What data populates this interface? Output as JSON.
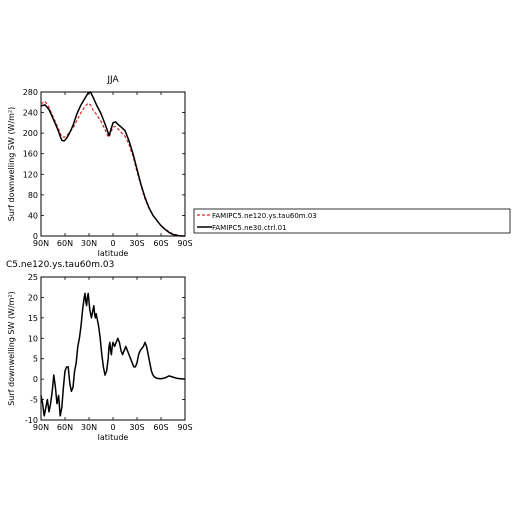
{
  "colors": {
    "series_0": "#d62728",
    "series_1": "#000000",
    "background": "#ffffff",
    "axes": "#000000"
  },
  "chart_data": [
    {
      "type": "line",
      "title": "JJA",
      "xlabel": "latitude",
      "ylabel": "Surf downwelling SW (W/m²)",
      "xlim": [
        90,
        -90
      ],
      "ylim": [
        0,
        280
      ],
      "x_ticks": [
        90,
        60,
        30,
        0,
        -30,
        -60,
        -90
      ],
      "x_tick_labels": [
        "90N",
        "60N",
        "30N",
        "0",
        "30S",
        "60S",
        "90S"
      ],
      "y_ticks": [
        0,
        40,
        80,
        120,
        160,
        200,
        240,
        280
      ],
      "y_tick_labels": [
        "0",
        "40",
        "80",
        "120",
        "160",
        "200",
        "240",
        "280"
      ],
      "legend": {
        "placement": "right"
      },
      "series": [
        {
          "name": "FAMIPC5.ne120.ys.tau60m.03",
          "style": "dashed",
          "x": [
            90,
            85,
            80,
            76,
            72,
            68,
            66,
            64,
            61,
            58,
            55,
            50,
            45,
            40,
            35,
            31,
            28,
            25,
            20,
            15,
            10,
            7,
            5,
            3,
            0,
            -3,
            -7,
            -10,
            -15,
            -20,
            -25,
            -30,
            -35,
            -40,
            -45,
            -50,
            -55,
            -60,
            -65,
            -70,
            -75,
            -80,
            -85,
            -90
          ],
          "y": [
            257,
            262,
            250,
            236,
            222,
            208,
            200,
            193,
            192,
            195,
            200,
            210,
            225,
            240,
            252,
            258,
            255,
            245,
            235,
            223,
            207,
            196,
            192,
            200,
            212,
            213,
            207,
            202,
            194,
            178,
            155,
            125,
            98,
            72,
            53,
            40,
            30,
            20,
            14,
            8,
            4,
            2,
            0,
            0
          ]
        },
        {
          "name": "FAMIPC5.ne30.ctrl.01",
          "style": "solid",
          "x": [
            90,
            85,
            80,
            76,
            72,
            68,
            66,
            64,
            61,
            58,
            55,
            50,
            45,
            40,
            35,
            31,
            28,
            25,
            20,
            15,
            10,
            7,
            5,
            3,
            0,
            -3,
            -7,
            -10,
            -15,
            -20,
            -25,
            -30,
            -35,
            -40,
            -45,
            -50,
            -55,
            -60,
            -65,
            -70,
            -75,
            -80,
            -85,
            -90
          ],
          "y": [
            253,
            255,
            246,
            232,
            218,
            203,
            194,
            186,
            185,
            190,
            198,
            215,
            238,
            255,
            268,
            278,
            280,
            270,
            253,
            238,
            218,
            205,
            195,
            205,
            220,
            222,
            216,
            212,
            205,
            185,
            160,
            130,
            100,
            75,
            55,
            40,
            30,
            20,
            13,
            7,
            3,
            1,
            0,
            0
          ]
        }
      ]
    },
    {
      "type": "line",
      "title": "C5.ne120.ys.tau60m.03",
      "xlabel": "latitude",
      "ylabel": "Surf downwelling SW (W/m²)",
      "xlim": [
        90,
        -90
      ],
      "ylim": [
        -10,
        25
      ],
      "x_ticks": [
        90,
        60,
        30,
        0,
        -30,
        -60,
        -90
      ],
      "x_tick_labels": [
        "90N",
        "60N",
        "30N",
        "0",
        "30S",
        "60S",
        "90S"
      ],
      "y_ticks": [
        -10,
        -5,
        0,
        5,
        10,
        15,
        20,
        25
      ],
      "y_tick_labels": [
        "-10",
        "-5",
        "0",
        "5",
        "10",
        "15",
        "20",
        "25"
      ],
      "series": [
        {
          "style": "solid",
          "x": [
            90,
            88,
            86,
            84,
            82,
            80,
            78,
            76,
            74,
            72,
            70,
            68,
            66,
            64,
            62,
            60,
            58,
            56,
            54,
            52,
            50,
            48,
            46,
            44,
            42,
            40,
            38,
            36,
            35,
            34,
            33,
            32,
            31,
            30,
            29,
            28,
            27,
            26,
            25,
            24,
            23,
            22,
            21,
            20,
            18,
            16,
            14,
            12,
            10,
            8,
            6,
            5,
            4,
            3,
            2,
            1,
            0,
            -2,
            -4,
            -6,
            -8,
            -10,
            -12,
            -14,
            -16,
            -18,
            -20,
            -22,
            -24,
            -26,
            -28,
            -30,
            -32,
            -34,
            -36,
            -38,
            -40,
            -42,
            -44,
            -46,
            -48,
            -50,
            -52,
            -55,
            -60,
            -65,
            -70,
            -75,
            -80,
            -85,
            -90
          ],
          "y": [
            -4,
            -6,
            -9,
            -7,
            -5,
            -8,
            -6,
            -3,
            1,
            -2,
            -6,
            -4,
            -9,
            -7,
            -2,
            2,
            3,
            3,
            -1,
            -3,
            -2,
            2,
            4,
            8,
            10,
            13,
            17,
            20,
            21,
            19,
            18,
            20,
            21,
            19,
            17,
            16,
            15,
            16,
            17,
            18,
            16,
            15,
            16,
            15,
            13,
            10,
            6,
            3,
            1,
            2,
            5,
            8,
            9,
            7,
            6,
            8,
            9,
            8,
            9,
            10,
            9,
            7,
            6,
            7,
            8,
            7,
            6,
            5,
            4,
            3,
            3,
            4,
            6,
            7,
            7.5,
            8,
            9,
            8,
            6,
            4,
            2,
            1,
            0.5,
            0.2,
            0.1,
            0.3,
            0.8,
            0.5,
            0.2,
            0.1,
            0
          ]
        }
      ]
    }
  ]
}
